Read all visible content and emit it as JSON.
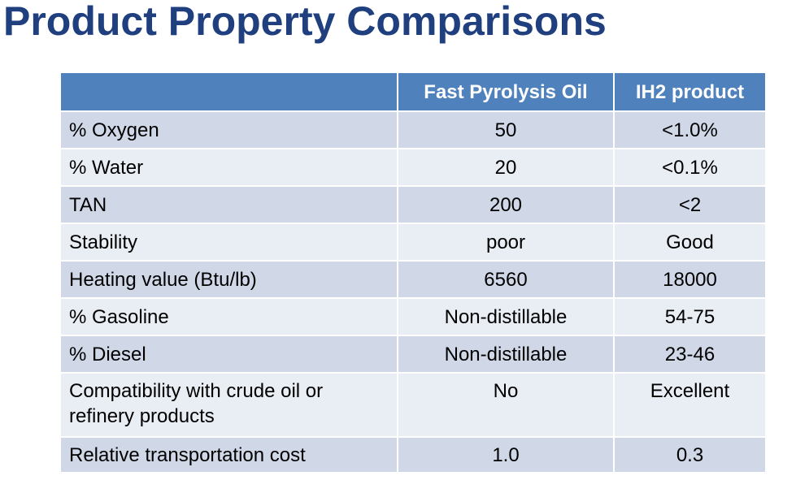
{
  "title": "Product Property Comparisons",
  "table": {
    "headers": [
      "",
      "Fast Pyrolysis Oil",
      "IH2 product"
    ],
    "rows": [
      {
        "label": "% Oxygen",
        "fpo": "50",
        "ih2": "<1.0%"
      },
      {
        "label": "% Water",
        "fpo": "20",
        "ih2": "<0.1%"
      },
      {
        "label": "TAN",
        "fpo": "200",
        "ih2": "<2"
      },
      {
        "label": "Stability",
        "fpo": "poor",
        "ih2": "Good"
      },
      {
        "label": "Heating value (Btu/lb)",
        "fpo": "6560",
        "ih2": "18000"
      },
      {
        "label": "% Gasoline",
        "fpo": "Non-distillable",
        "ih2": "54-75"
      },
      {
        "label": "% Diesel",
        "fpo": "Non-distillable",
        "ih2": "23-46"
      },
      {
        "label_line1": "Compatibility with crude oil or",
        "label_line2": "refinery products",
        "fpo": "No",
        "ih2": "Excellent"
      },
      {
        "label": "Relative transportation cost",
        "fpo": "1.0",
        "ih2": "0.3"
      }
    ]
  },
  "colors": {
    "title": "#1f3f7f",
    "header_bg": "#4f81bd",
    "row_dark": "#d0d8e8",
    "row_light": "#e9edf4"
  }
}
